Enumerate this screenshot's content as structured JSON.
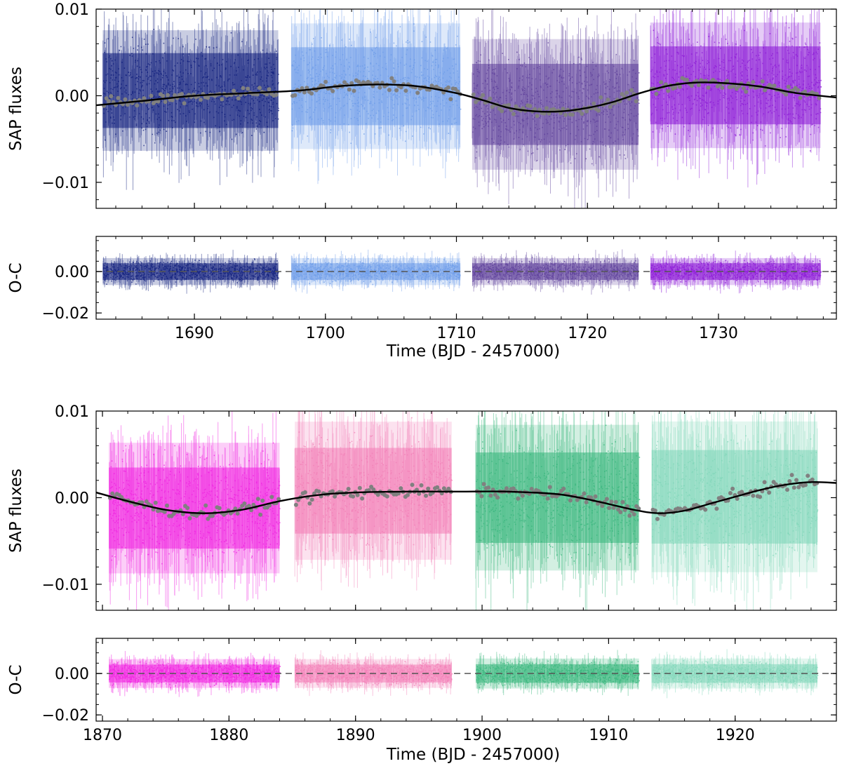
{
  "chart_data": [
    {
      "type": "scatter",
      "title": "",
      "xlabel": "Time (BJD - 2457000)",
      "xlim": [
        1682.5,
        1739
      ],
      "xticks": [
        1690,
        1700,
        1710,
        1720,
        1730
      ],
      "xtick_labels": [
        "1690",
        "1700",
        "1710",
        "1720",
        "1730"
      ],
      "panels": [
        {
          "ylabel": "SAP fluxes",
          "ylim": [
            -0.013,
            0.01
          ],
          "yticks": [
            0.01,
            0.0,
            -0.01
          ],
          "ytick_labels": [
            "0.01",
            "0.00",
            "−0.01"
          ],
          "segments": [
            {
              "x0": 1683.0,
              "x1": 1696.4,
              "color": "#0b1a7a",
              "center": 0.0006,
              "halfwidth": 0.0048
            },
            {
              "x0": 1697.4,
              "x1": 1710.3,
              "color": "#6a9ae8",
              "center": 0.0011,
              "halfwidth": 0.005
            },
            {
              "x0": 1711.2,
              "x1": 1723.9,
              "color": "#5c3d9a",
              "center": -0.001,
              "halfwidth": 0.0052
            },
            {
              "x0": 1724.8,
              "x1": 1737.8,
              "color": "#8a15d6",
              "center": 0.0012,
              "halfwidth": 0.005
            }
          ],
          "binned_color": "#808080",
          "model": {
            "color": "#000000",
            "points": [
              [
                1682.5,
                -0.0011
              ],
              [
                1686,
                -0.0006
              ],
              [
                1690,
                0.0
              ],
              [
                1694,
                0.0003
              ],
              [
                1698,
                0.0006
              ],
              [
                1701,
                0.0011
              ],
              [
                1704,
                0.0013
              ],
              [
                1707,
                0.0011
              ],
              [
                1710,
                0.0003
              ],
              [
                1712,
                -0.0005
              ],
              [
                1714,
                -0.0014
              ],
              [
                1716,
                -0.0018
              ],
              [
                1718,
                -0.0018
              ],
              [
                1720,
                -0.0014
              ],
              [
                1722,
                -0.0007
              ],
              [
                1724,
                0.0003
              ],
              [
                1726,
                0.0011
              ],
              [
                1728,
                0.0015
              ],
              [
                1730,
                0.0015
              ],
              [
                1733,
                0.0011
              ],
              [
                1736,
                0.0003
              ],
              [
                1739,
                -0.0002
              ]
            ]
          }
        },
        {
          "ylabel": "O-C",
          "ylim": [
            -0.023,
            0.017
          ],
          "yticks": [
            0.0,
            -0.02
          ],
          "ytick_labels": [
            "0.00",
            "−0.02"
          ],
          "zero_line": true,
          "segments": [
            {
              "x0": 1683.0,
              "x1": 1696.4,
              "color": "#0b1a7a",
              "center": 0.0,
              "halfwidth": 0.0045
            },
            {
              "x0": 1697.4,
              "x1": 1710.3,
              "color": "#6a9ae8",
              "center": 0.0,
              "halfwidth": 0.0045
            },
            {
              "x0": 1711.2,
              "x1": 1723.9,
              "color": "#5c3d9a",
              "center": 0.0,
              "halfwidth": 0.0045
            },
            {
              "x0": 1724.8,
              "x1": 1737.8,
              "color": "#8a15d6",
              "center": 0.0,
              "halfwidth": 0.0045
            }
          ]
        }
      ]
    },
    {
      "type": "scatter",
      "title": "",
      "xlabel": "Time (BJD - 2457000)",
      "xlim": [
        1869.5,
        1928
      ],
      "xticks": [
        1870,
        1880,
        1890,
        1900,
        1910,
        1920
      ],
      "xtick_labels": [
        "1870",
        "1880",
        "1890",
        "1900",
        "1910",
        "1920"
      ],
      "panels": [
        {
          "ylabel": "SAP fluxes",
          "ylim": [
            -0.013,
            0.01
          ],
          "yticks": [
            0.01,
            0.0,
            -0.01
          ],
          "ytick_labels": [
            "0.01",
            "0.00",
            "−0.01"
          ],
          "segments": [
            {
              "x0": 1870.5,
              "x1": 1884.0,
              "color": "#f01ee0",
              "center": -0.0012,
              "halfwidth": 0.0052
            },
            {
              "x0": 1885.2,
              "x1": 1897.6,
              "color": "#f27cb5",
              "center": 0.0008,
              "halfwidth": 0.0055
            },
            {
              "x0": 1899.5,
              "x1": 1912.4,
              "color": "#35b57a",
              "center": 0.0,
              "halfwidth": 0.0058
            },
            {
              "x0": 1913.4,
              "x1": 1926.5,
              "color": "#7fd6b8",
              "center": 0.0001,
              "halfwidth": 0.006
            }
          ],
          "binned_color": "#808080",
          "model": {
            "color": "#000000",
            "points": [
              [
                1869.5,
                0.0006
              ],
              [
                1872,
                -0.0004
              ],
              [
                1875,
                -0.0014
              ],
              [
                1878,
                -0.0018
              ],
              [
                1881,
                -0.0014
              ],
              [
                1884,
                -0.0004
              ],
              [
                1887,
                0.0003
              ],
              [
                1890,
                0.0006
              ],
              [
                1894,
                0.0007
              ],
              [
                1898,
                0.0007
              ],
              [
                1902,
                0.0007
              ],
              [
                1906,
                0.0004
              ],
              [
                1909,
                -0.0004
              ],
              [
                1912,
                -0.0014
              ],
              [
                1914,
                -0.0018
              ],
              [
                1916,
                -0.0015
              ],
              [
                1918,
                -0.0007
              ],
              [
                1920,
                0.0001
              ],
              [
                1922,
                0.0009
              ],
              [
                1924,
                0.0015
              ],
              [
                1926,
                0.0018
              ],
              [
                1928,
                0.0017
              ]
            ]
          }
        },
        {
          "ylabel": "O-C",
          "ylim": [
            -0.023,
            0.017
          ],
          "yticks": [
            0.0,
            -0.02
          ],
          "ytick_labels": [
            "0.00",
            "−0.02"
          ],
          "zero_line": true,
          "segments": [
            {
              "x0": 1870.5,
              "x1": 1884.0,
              "color": "#f01ee0",
              "center": 0.0,
              "halfwidth": 0.0048
            },
            {
              "x0": 1885.2,
              "x1": 1897.6,
              "color": "#f27cb5",
              "center": 0.0,
              "halfwidth": 0.0048
            },
            {
              "x0": 1899.5,
              "x1": 1912.4,
              "color": "#35b57a",
              "center": 0.0,
              "halfwidth": 0.005
            },
            {
              "x0": 1913.4,
              "x1": 1926.5,
              "color": "#7fd6b8",
              "center": 0.0,
              "halfwidth": 0.005
            }
          ]
        }
      ]
    }
  ]
}
